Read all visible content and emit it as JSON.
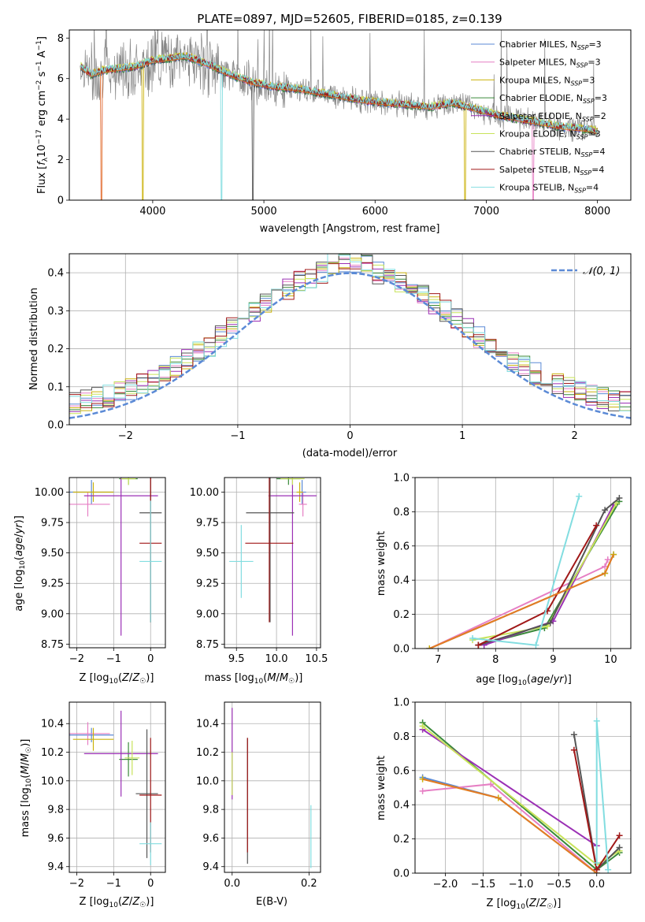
{
  "colors": {
    "Chabrier MILES": "#5b8ad6",
    "Salpeter MILES": "#e67fc4",
    "Kroupa MILES": "#cbb20c",
    "Chabrier ELODIE": "#3a8a3a",
    "Salpeter ELODIE": "#9b30b5",
    "Kroupa ELODIE": "#c8e35a",
    "Chabrier STELIB": "#555555",
    "Salpeter STELIB": "#a01818",
    "Kroupa STELIB": "#82dde0",
    "data": "#888888",
    "model_orange": "#e47a25",
    "normal_curve": "#5b8ad6"
  },
  "chart_data": [
    {
      "type": "line",
      "title": "PLATE=0897, MJD=52605, FIBERID=0185, z=0.139",
      "xlabel": "wavelength [Angstrom, rest frame]",
      "ylabel": "Flux [f_λ 10^-17 erg cm^-2 s^-1 A^-1]",
      "xlim": [
        3250,
        8300
      ],
      "ylim": [
        0,
        8.4
      ],
      "xticks": [
        4000,
        5000,
        6000,
        7000,
        8000
      ],
      "yticks": [
        0,
        2,
        4,
        6,
        8
      ],
      "grid": false,
      "legend_position": "top-right",
      "legend": [
        {
          "label": "Chabrier MILES, N",
          "sub": "SSP",
          "tail": "=3",
          "color_key": "Chabrier MILES"
        },
        {
          "label": "Salpeter MILES, N",
          "sub": "SSP",
          "tail": "=3",
          "color_key": "Salpeter MILES"
        },
        {
          "label": "Kroupa MILES, N",
          "sub": "SSP",
          "tail": "=3",
          "color_key": "Kroupa MILES"
        },
        {
          "label": "Chabrier ELODIE, N",
          "sub": "SSP",
          "tail": "=3",
          "color_key": "Chabrier ELODIE"
        },
        {
          "label": "Salpeter ELODIE, N",
          "sub": "SSP",
          "tail": "=2",
          "color_key": "Salpeter ELODIE"
        },
        {
          "label": "Kroupa ELODIE, N",
          "sub": "SSP",
          "tail": "=3",
          "color_key": "Kroupa ELODIE"
        },
        {
          "label": "Chabrier STELIB, N",
          "sub": "SSP",
          "tail": "=4",
          "color_key": "Chabrier STELIB"
        },
        {
          "label": "Salpeter STELIB, N",
          "sub": "SSP",
          "tail": "=4",
          "color_key": "Salpeter STELIB"
        },
        {
          "label": "Kroupa STELIB, N",
          "sub": "SSP",
          "tail": "=4",
          "color_key": "Kroupa STELIB"
        }
      ],
      "continuum": {
        "x": [
          3350,
          3450,
          3550,
          3700,
          3850,
          4000,
          4150,
          4300,
          4500,
          4700,
          4900,
          5100,
          5300,
          5500,
          5700,
          5900,
          6100,
          6300,
          6500,
          6700,
          6900,
          7100,
          7300,
          7500,
          7700,
          7900,
          8000
        ],
        "y": [
          6.6,
          6.2,
          6.4,
          6.5,
          6.6,
          6.9,
          7.0,
          7.1,
          6.7,
          6.2,
          5.8,
          5.6,
          5.5,
          5.3,
          5.1,
          4.9,
          4.8,
          4.7,
          4.6,
          4.8,
          4.5,
          4.2,
          4.0,
          3.8,
          3.6,
          3.5,
          3.4
        ]
      },
      "dips": [
        {
          "series": "Salpeter MILES",
          "x": 3540
        },
        {
          "series": "Kroupa MILES",
          "x": 3910
        },
        {
          "series": "Kroupa STELIB",
          "x": 4620
        },
        {
          "series": "Chabrier STELIB",
          "x": 4900
        },
        {
          "series": "Kroupa MILES",
          "x": 6810
        },
        {
          "series": "Salpeter MILES",
          "x": 7420
        }
      ]
    },
    {
      "type": "histogram",
      "xlabel": "(data-model)/error",
      "ylabel": "Normed distribution",
      "xlim": [
        -2.5,
        2.5
      ],
      "ylim": [
        0,
        0.45
      ],
      "xticks": [
        -2,
        -1,
        0,
        1,
        2
      ],
      "yticks": [
        0.0,
        0.1,
        0.2,
        0.3,
        0.4
      ],
      "grid": true,
      "legend_position": "top-right",
      "legend": [
        {
          "label": "𝒩(0, 1)",
          "color_key": "normal_curve"
        }
      ],
      "bin_width": 0.1,
      "bin_start": -2.5,
      "base_profile": [
        0.04,
        0.04,
        0.06,
        0.05,
        0.06,
        0.07,
        0.08,
        0.09,
        0.1,
        0.11,
        0.12,
        0.13,
        0.14,
        0.15,
        0.16,
        0.18,
        0.2,
        0.22,
        0.24,
        0.26,
        0.28,
        0.3,
        0.33,
        0.35,
        0.37,
        0.38,
        0.39,
        0.38,
        0.37,
        0.38,
        0.39,
        0.4,
        0.39,
        0.38,
        0.37,
        0.36,
        0.35,
        0.34,
        0.33,
        0.32,
        0.3,
        0.27,
        0.25,
        0.23,
        0.21,
        0.18,
        0.15,
        0.12,
        0.1,
        0.08,
        0.07,
        0.06,
        0.05,
        0.06,
        0.05,
        0.04,
        0.05,
        0.06,
        0.05,
        0.04,
        0.04,
        0.03,
        0.04,
        0.03,
        0.04,
        0.03,
        0.02,
        0.03,
        0.03,
        0.03,
        0.04,
        0.03,
        0.02,
        0.03,
        0.03,
        0.02,
        0.03,
        0.02,
        0.03,
        0.02,
        0.02,
        0.02,
        0.02,
        0.03,
        0.02,
        0.02,
        0.02,
        0.03,
        0.02,
        0.02,
        0.03,
        0.02,
        0.02,
        0.03,
        0.04,
        0.03,
        0.04,
        0.05,
        0.04,
        0.04
      ],
      "normal_curve": {
        "mu": 0,
        "sigma": 1
      }
    },
    {
      "type": "errorbar",
      "xlabel": "Z [log10(Z/Z☉)]",
      "ylabel": "age  [log10(age/yr)]",
      "xlim": [
        -2.2,
        0.4
      ],
      "ylim": [
        8.72,
        10.12
      ],
      "xticks": [
        -2,
        -1,
        0
      ],
      "yticks": [
        8.75,
        9.0,
        9.25,
        9.5,
        9.75,
        10.0
      ],
      "grid": true,
      "points": [
        {
          "series": "Chabrier MILES",
          "x": -1.6,
          "y": 10.0,
          "xerr": 0.6,
          "yerr": 0.1
        },
        {
          "series": "Salpeter MILES",
          "x": -1.7,
          "y": 9.9,
          "xerr": 0.6,
          "yerr": 0.1
        },
        {
          "series": "Kroupa MILES",
          "x": -1.55,
          "y": 10.0,
          "xerr": 0.55,
          "yerr": 0.08
        },
        {
          "series": "Chabrier ELODIE",
          "x": -0.6,
          "y": 10.11,
          "xerr": 0.25,
          "yerr": 0.05
        },
        {
          "series": "Salpeter ELODIE",
          "x": -0.8,
          "y": 9.97,
          "xerr": 1.0,
          "yerr": 1.15
        },
        {
          "series": "Kroupa ELODIE",
          "x": -0.6,
          "y": 10.11,
          "xerr": 0.2,
          "yerr": 0.05
        },
        {
          "series": "Chabrier STELIB",
          "x": 0.0,
          "y": 9.83,
          "xerr": 0.3,
          "yerr": 0.9
        },
        {
          "series": "Salpeter STELIB",
          "x": 0.0,
          "y": 9.58,
          "xerr": 0.3,
          "yerr": 0.65
        },
        {
          "series": "Kroupa STELIB",
          "x": 0.0,
          "y": 9.43,
          "xerr": 0.3,
          "yerr": 0.5
        }
      ]
    },
    {
      "type": "errorbar",
      "xlabel": "mass [log10(M/M☉)]",
      "ylabel": "",
      "xlim": [
        9.35,
        10.55
      ],
      "ylim": [
        8.72,
        10.12
      ],
      "xticks": [
        9.5,
        10.0,
        10.5
      ],
      "yticks": [
        8.75,
        9.0,
        9.25,
        9.5,
        9.75,
        10.0
      ],
      "grid": true,
      "points": [
        {
          "series": "Chabrier MILES",
          "x": 10.32,
          "y": 10.0,
          "xerr": 0.05,
          "yerr": 0.1
        },
        {
          "series": "Salpeter MILES",
          "x": 10.33,
          "y": 9.9,
          "xerr": 0.05,
          "yerr": 0.1
        },
        {
          "series": "Kroupa MILES",
          "x": 10.29,
          "y": 10.0,
          "xerr": 0.04,
          "yerr": 0.08
        },
        {
          "series": "Chabrier ELODIE",
          "x": 10.15,
          "y": 10.11,
          "xerr": 0.15,
          "yerr": 0.05
        },
        {
          "series": "Salpeter ELODIE",
          "x": 10.2,
          "y": 9.97,
          "xerr": 0.3,
          "yerr": 1.15
        },
        {
          "series": "Kroupa ELODIE",
          "x": 10.2,
          "y": 10.11,
          "xerr": 0.15,
          "yerr": 0.05
        },
        {
          "series": "Chabrier STELIB",
          "x": 9.92,
          "y": 9.83,
          "xerr": 0.3,
          "yerr": 0.9
        },
        {
          "series": "Salpeter STELIB",
          "x": 9.91,
          "y": 9.58,
          "xerr": 0.3,
          "yerr": 0.65
        },
        {
          "series": "Kroupa STELIB",
          "x": 9.56,
          "y": 9.43,
          "xerr": 0.15,
          "yerr": 0.3
        }
      ]
    },
    {
      "type": "line",
      "xlabel": "age  [log10(age/yr)]",
      "ylabel": "mass weight",
      "xlim": [
        6.6,
        10.35
      ],
      "ylim": [
        0,
        1.0
      ],
      "xticks": [
        7,
        8,
        9,
        10
      ],
      "yticks": [
        0.0,
        0.2,
        0.4,
        0.6,
        0.8,
        1.0
      ],
      "grid": true,
      "series": [
        {
          "name": "Chabrier MILES",
          "x": [
            6.85,
            9.9,
            10.05
          ],
          "y": [
            0.0,
            0.44,
            0.55
          ]
        },
        {
          "name": "Salpeter MILES",
          "x": [
            6.85,
            9.9,
            9.95
          ],
          "y": [
            0.0,
            0.48,
            0.52
          ]
        },
        {
          "name": "Kroupa MILES",
          "x": [
            6.85,
            9.9,
            10.05
          ],
          "y": [
            0.0,
            0.44,
            0.55
          ]
        },
        {
          "name": "Chabrier ELODIE",
          "x": [
            7.7,
            8.85,
            10.15
          ],
          "y": [
            0.02,
            0.12,
            0.86
          ]
        },
        {
          "name": "Salpeter ELODIE",
          "x": [
            7.8,
            9.0,
            10.05
          ],
          "y": [
            0.02,
            0.16,
            0.84
          ]
        },
        {
          "name": "Kroupa ELODIE",
          "x": [
            7.6,
            8.9,
            10.1
          ],
          "y": [
            0.05,
            0.13,
            0.85
          ]
        },
        {
          "name": "Chabrier STELIB",
          "x": [
            7.7,
            8.95,
            9.9,
            10.15
          ],
          "y": [
            0.02,
            0.15,
            0.81,
            0.88
          ]
        },
        {
          "name": "Salpeter STELIB",
          "x": [
            7.7,
            8.9,
            9.75
          ],
          "y": [
            0.02,
            0.22,
            0.72
          ]
        },
        {
          "name": "Kroupa STELIB",
          "x": [
            7.6,
            8.7,
            9.45
          ],
          "y": [
            0.06,
            0.02,
            0.89
          ]
        }
      ]
    },
    {
      "type": "errorbar",
      "xlabel": "Z [log10(Z/Z☉)]",
      "ylabel": "mass [log10(M/M☉)]",
      "xlim": [
        -2.2,
        0.4
      ],
      "ylim": [
        9.36,
        10.55
      ],
      "xticks": [
        -2,
        -1,
        0
      ],
      "yticks": [
        9.4,
        9.6,
        9.8,
        10.0,
        10.2,
        10.4
      ],
      "grid": true,
      "points": [
        {
          "series": "Chabrier MILES",
          "x": -1.6,
          "y": 10.32,
          "xerr": 0.6,
          "yerr": 0.05
        },
        {
          "series": "Salpeter MILES",
          "x": -1.7,
          "y": 10.33,
          "xerr": 0.6,
          "yerr": 0.08
        },
        {
          "series": "Kroupa MILES",
          "x": -1.55,
          "y": 10.29,
          "xerr": 0.55,
          "yerr": 0.08
        },
        {
          "series": "Chabrier ELODIE",
          "x": -0.6,
          "y": 10.15,
          "xerr": 0.25,
          "yerr": 0.12
        },
        {
          "series": "Salpeter ELODIE",
          "x": -0.8,
          "y": 10.19,
          "xerr": 1.0,
          "yerr": 0.3
        },
        {
          "series": "Kroupa ELODIE",
          "x": -0.5,
          "y": 10.16,
          "xerr": 0.2,
          "yerr": 0.12
        },
        {
          "series": "Chabrier STELIB",
          "x": -0.1,
          "y": 9.91,
          "xerr": 0.3,
          "yerr": 0.45
        },
        {
          "series": "Salpeter STELIB",
          "x": 0.0,
          "y": 9.9,
          "xerr": 0.3,
          "yerr": 0.4
        },
        {
          "series": "Kroupa STELIB",
          "x": 0.0,
          "y": 9.56,
          "xerr": 0.3,
          "yerr": 0.15
        }
      ]
    },
    {
      "type": "errorbar",
      "xlabel": "E(B-V)",
      "ylabel": "",
      "xlim": [
        -0.02,
        0.23
      ],
      "ylim": [
        9.36,
        10.55
      ],
      "xticks": [
        0.0,
        0.2
      ],
      "yticks": [
        9.4,
        9.6,
        9.8,
        10.0,
        10.2,
        10.4
      ],
      "grid": true,
      "points": [
        {
          "series": "Salpeter ELODIE",
          "x": 0.0,
          "y": 10.19,
          "xerr": 0.0,
          "yerr": 0.32
        },
        {
          "series": "Kroupa ELODIE",
          "x": 0.0,
          "y": 10.05,
          "xerr": 0.0,
          "yerr": 0.15
        },
        {
          "series": "Chabrier STELIB",
          "x": 0.04,
          "y": 9.86,
          "xerr": 0.0,
          "yerr": 0.44
        },
        {
          "series": "Salpeter STELIB",
          "x": 0.04,
          "y": 9.9,
          "xerr": 0.0,
          "yerr": 0.4
        },
        {
          "series": "Kroupa STELIB",
          "x": 0.205,
          "y": 9.61,
          "xerr": 0.0,
          "yerr": 0.22
        }
      ]
    },
    {
      "type": "line",
      "xlabel": "Z [log10(Z/Z☉)]",
      "ylabel": "mass weight",
      "xlim": [
        -2.4,
        0.45
      ],
      "ylim": [
        0,
        1.0
      ],
      "xticks": [
        -2.0,
        -1.5,
        -1.0,
        -0.5,
        0.0
      ],
      "yticks": [
        0.0,
        0.2,
        0.4,
        0.6,
        0.8,
        1.0
      ],
      "grid": true,
      "series": [
        {
          "name": "Chabrier MILES",
          "x": [
            -2.3,
            -1.3,
            0.0
          ],
          "y": [
            0.56,
            0.44,
            0.0
          ]
        },
        {
          "name": "Salpeter MILES",
          "x": [
            -2.3,
            -1.4,
            0.0
          ],
          "y": [
            0.48,
            0.52,
            0.0
          ]
        },
        {
          "name": "Kroupa MILES",
          "x": [
            -2.3,
            -1.3,
            0.0
          ],
          "y": [
            0.55,
            0.44,
            0.0
          ]
        },
        {
          "name": "Chabrier ELODIE",
          "x": [
            -2.3,
            0.0,
            0.3
          ],
          "y": [
            0.88,
            0.02,
            0.12
          ]
        },
        {
          "name": "Salpeter ELODIE",
          "x": [
            -2.3,
            0.0
          ],
          "y": [
            0.84,
            0.16
          ]
        },
        {
          "name": "Kroupa ELODIE",
          "x": [
            -2.3,
            0.0,
            0.3
          ],
          "y": [
            0.86,
            0.05,
            0.13
          ]
        },
        {
          "name": "Chabrier STELIB",
          "x": [
            -0.3,
            0.0,
            0.3
          ],
          "y": [
            0.81,
            0.02,
            0.15
          ]
        },
        {
          "name": "Salpeter STELIB",
          "x": [
            -0.3,
            0.0,
            0.3
          ],
          "y": [
            0.72,
            0.02,
            0.22
          ]
        },
        {
          "name": "Kroupa STELIB",
          "x": [
            0.0,
            0.0,
            0.15
          ],
          "y": [
            0.06,
            0.89,
            0.02
          ]
        }
      ]
    }
  ]
}
